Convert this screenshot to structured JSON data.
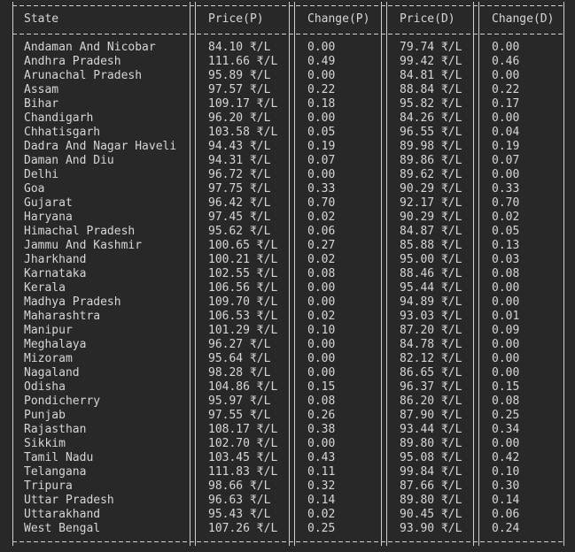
{
  "table": {
    "headers": [
      "State",
      "Price(P)",
      "Change(P)",
      "Price(D)",
      "Change(D)"
    ],
    "rows": [
      [
        "Andaman And Nicobar",
        "84.10 ₹/L",
        "0.00",
        "79.74 ₹/L",
        "0.00"
      ],
      [
        "Andhra Pradesh",
        "111.66 ₹/L",
        "0.49",
        "99.42 ₹/L",
        "0.46"
      ],
      [
        "Arunachal Pradesh",
        "95.89 ₹/L",
        "0.00",
        "84.81 ₹/L",
        "0.00"
      ],
      [
        "Assam",
        "97.57 ₹/L",
        "0.22",
        "88.84 ₹/L",
        "0.22"
      ],
      [
        "Bihar",
        "109.17 ₹/L",
        "0.18",
        "95.82 ₹/L",
        "0.17"
      ],
      [
        "Chandigarh",
        "96.20 ₹/L",
        "0.00",
        "84.26 ₹/L",
        "0.00"
      ],
      [
        "Chhatisgarh",
        "103.58 ₹/L",
        "0.05",
        "96.55 ₹/L",
        "0.04"
      ],
      [
        "Dadra And Nagar Haveli",
        "94.43 ₹/L",
        "0.19",
        "89.98 ₹/L",
        "0.19"
      ],
      [
        "Daman And Diu",
        "94.31 ₹/L",
        "0.07",
        "89.86 ₹/L",
        "0.07"
      ],
      [
        "Delhi",
        "96.72 ₹/L",
        "0.00",
        "89.62 ₹/L",
        "0.00"
      ],
      [
        "Goa",
        "97.75 ₹/L",
        "0.33",
        "90.29 ₹/L",
        "0.33"
      ],
      [
        "Gujarat",
        "96.42 ₹/L",
        "0.70",
        "92.17 ₹/L",
        "0.70"
      ],
      [
        "Haryana",
        "97.45 ₹/L",
        "0.02",
        "90.29 ₹/L",
        "0.02"
      ],
      [
        "Himachal Pradesh",
        "95.62 ₹/L",
        "0.06",
        "84.87 ₹/L",
        "0.05"
      ],
      [
        "Jammu And Kashmir",
        "100.65 ₹/L",
        "0.27",
        "85.88 ₹/L",
        "0.13"
      ],
      [
        "Jharkhand",
        "100.21 ₹/L",
        "0.02",
        "95.00 ₹/L",
        "0.03"
      ],
      [
        "Karnataka",
        "102.55 ₹/L",
        "0.08",
        "88.46 ₹/L",
        "0.08"
      ],
      [
        "Kerala",
        "106.56 ₹/L",
        "0.00",
        "95.44 ₹/L",
        "0.00"
      ],
      [
        "Madhya Pradesh",
        "109.70 ₹/L",
        "0.00",
        "94.89 ₹/L",
        "0.00"
      ],
      [
        "Maharashtra",
        "106.53 ₹/L",
        "0.02",
        "93.03 ₹/L",
        "0.01"
      ],
      [
        "Manipur",
        "101.29 ₹/L",
        "0.10",
        "87.20 ₹/L",
        "0.09"
      ],
      [
        "Meghalaya",
        "96.27 ₹/L",
        "0.00",
        "84.78 ₹/L",
        "0.00"
      ],
      [
        "Mizoram",
        "95.64 ₹/L",
        "0.00",
        "82.12 ₹/L",
        "0.00"
      ],
      [
        "Nagaland",
        "98.28 ₹/L",
        "0.00",
        "86.65 ₹/L",
        "0.00"
      ],
      [
        "Odisha",
        "104.86 ₹/L",
        "0.15",
        "96.37 ₹/L",
        "0.15"
      ],
      [
        "Pondicherry",
        "95.97 ₹/L",
        "0.08",
        "86.20 ₹/L",
        "0.08"
      ],
      [
        "Punjab",
        "97.55 ₹/L",
        "0.26",
        "87.90 ₹/L",
        "0.25"
      ],
      [
        "Rajasthan",
        "108.17 ₹/L",
        "0.38",
        "93.44 ₹/L",
        "0.34"
      ],
      [
        "Sikkim",
        "102.70 ₹/L",
        "0.00",
        "89.80 ₹/L",
        "0.00"
      ],
      [
        "Tamil Nadu",
        "103.45 ₹/L",
        "0.43",
        "95.08 ₹/L",
        "0.42"
      ],
      [
        "Telangana",
        "111.83 ₹/L",
        "0.11",
        "99.84 ₹/L",
        "0.10"
      ],
      [
        "Tripura",
        "98.66 ₹/L",
        "0.32",
        "87.66 ₹/L",
        "0.30"
      ],
      [
        "Uttar Pradesh",
        "96.63 ₹/L",
        "0.14",
        "89.80 ₹/L",
        "0.14"
      ],
      [
        "Uttarakhand",
        "95.43 ₹/L",
        "0.02",
        "90.45 ₹/L",
        "0.06"
      ],
      [
        "West Bengal",
        "107.26 ₹/L",
        "0.25",
        "93.90 ₹/L",
        "0.24"
      ]
    ]
  }
}
